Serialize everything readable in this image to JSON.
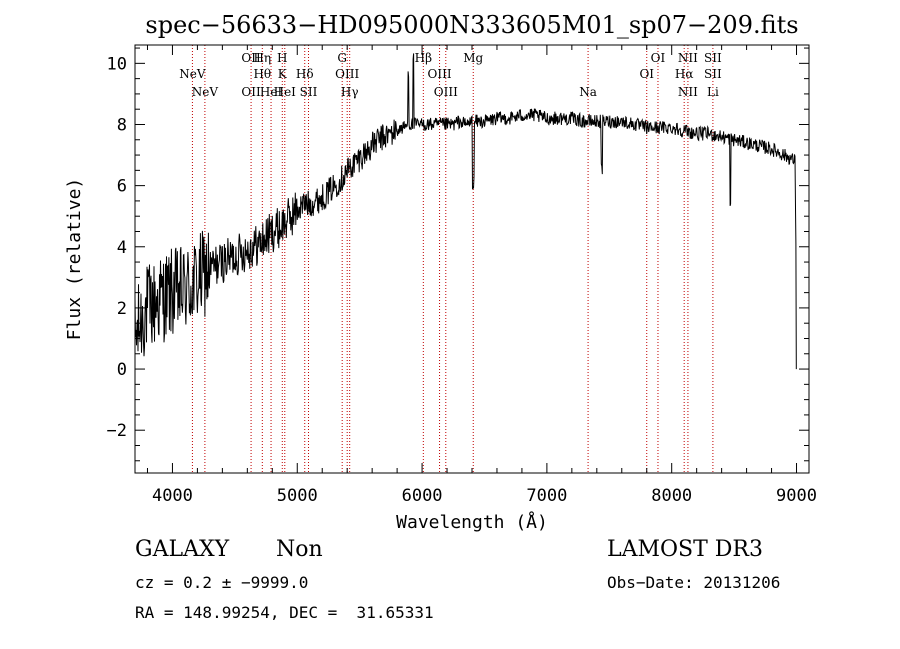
{
  "chart_data": {
    "type": "line",
    "title": "spec−56633−HD095000N333605M01_sp07−209.fits",
    "xlabel": "Wavelength (Å)",
    "ylabel": "Flux (relative)",
    "xlim": [
      3700,
      9100
    ],
    "ylim": [
      -3.4,
      10.6
    ],
    "xticks": [
      4000,
      5000,
      6000,
      7000,
      8000,
      9000
    ],
    "yticks": [
      -2,
      0,
      2,
      4,
      6,
      8,
      10
    ],
    "xticks_labels": [
      "4000",
      "5000",
      "6000",
      "7000",
      "8000",
      "9000"
    ],
    "yticks_labels": [
      "−2",
      "0",
      "2",
      "4",
      "6",
      "8",
      "10"
    ],
    "series": [
      {
        "name": "flux",
        "x": [
          3700,
          3750,
          3800,
          3850,
          3900,
          3950,
          4000,
          4050,
          4100,
          4150,
          4200,
          4250,
          4300,
          4350,
          4400,
          4450,
          4500,
          4550,
          4600,
          4650,
          4700,
          4750,
          4800,
          4850,
          4900,
          4950,
          5000,
          5050,
          5100,
          5150,
          5200,
          5250,
          5300,
          5350,
          5400,
          5450,
          5500,
          5550,
          5600,
          5650,
          5700,
          5750,
          5800,
          5850,
          5900,
          5950,
          6000,
          6050,
          6100,
          6150,
          6200,
          6250,
          6300,
          6350,
          6400,
          6450,
          6500,
          6600,
          6700,
          6800,
          6900,
          7000,
          7100,
          7200,
          7300,
          7400,
          7500,
          7600,
          7700,
          7800,
          7900,
          8000,
          8100,
          8200,
          8300,
          8400,
          8500,
          8600,
          8700,
          8800,
          8900,
          8950,
          8990,
          9000
        ],
        "y": [
          1.0,
          1.6,
          2.0,
          2.1,
          2.3,
          2.4,
          2.5,
          2.5,
          2.6,
          2.7,
          2.9,
          3.1,
          3.3,
          3.4,
          3.5,
          3.6,
          3.7,
          3.8,
          3.9,
          4.0,
          4.1,
          4.3,
          4.5,
          4.6,
          4.8,
          5.0,
          5.2,
          5.4,
          5.4,
          5.5,
          5.6,
          5.8,
          6.0,
          6.2,
          6.5,
          6.7,
          6.9,
          7.1,
          7.3,
          7.5,
          7.6,
          7.7,
          7.8,
          7.9,
          8.0,
          8.0,
          8.0,
          8.0,
          8.0,
          8.0,
          8.0,
          8.0,
          8.1,
          8.0,
          8.1,
          8.1,
          8.1,
          8.2,
          8.2,
          8.3,
          8.3,
          8.2,
          8.2,
          8.2,
          8.1,
          8.1,
          8.1,
          8.1,
          8.0,
          7.9,
          7.9,
          7.9,
          7.8,
          7.7,
          7.7,
          7.6,
          7.5,
          7.4,
          7.3,
          7.2,
          7.0,
          6.9,
          6.8,
          0.0
        ]
      }
    ],
    "lines": [
      {
        "label": "NeV",
        "wavelength": 4160,
        "row": 2
      },
      {
        "label": "NeV",
        "wavelength": 4260,
        "row": 3
      },
      {
        "label": "OII",
        "wavelength": 4630,
        "row": 1
      },
      {
        "label": "OII",
        "wavelength": 4630,
        "row": 3
      },
      {
        "label": "Hη",
        "wavelength": 4720,
        "row": 1
      },
      {
        "label": "Hθ",
        "wavelength": 4720,
        "row": 2
      },
      {
        "label": "HeI",
        "wavelength": 4790,
        "row": 3
      },
      {
        "label": "H",
        "wavelength": 4880,
        "row": 1
      },
      {
        "label": "K",
        "wavelength": 4880,
        "row": 2
      },
      {
        "label": "HeI",
        "wavelength": 4900,
        "row": 3
      },
      {
        "label": "Hδ",
        "wavelength": 5060,
        "row": 2
      },
      {
        "label": "SII",
        "wavelength": 5090,
        "row": 3
      },
      {
        "label": "G",
        "wavelength": 5360,
        "row": 1
      },
      {
        "label": "OIII",
        "wavelength": 5400,
        "row": 2
      },
      {
        "label": "Hγ",
        "wavelength": 5420,
        "row": 3
      },
      {
        "label": "Hβ",
        "wavelength": 6010,
        "row": 1
      },
      {
        "label": "OIII",
        "wavelength": 6140,
        "row": 2
      },
      {
        "label": "OIII",
        "wavelength": 6190,
        "row": 3
      },
      {
        "label": "Mg",
        "wavelength": 6410,
        "row": 1
      },
      {
        "label": "Na",
        "wavelength": 7330,
        "row": 3
      },
      {
        "label": "OI",
        "wavelength": 7890,
        "row": 1
      },
      {
        "label": "OI",
        "wavelength": 7800,
        "row": 2
      },
      {
        "label": "NII",
        "wavelength": 8130,
        "row": 1
      },
      {
        "label": "Hα",
        "wavelength": 8100,
        "row": 2
      },
      {
        "label": "NII",
        "wavelength": 8130,
        "row": 3
      },
      {
        "label": "SII",
        "wavelength": 8330,
        "row": 1
      },
      {
        "label": "SII",
        "wavelength": 8330,
        "row": 2
      },
      {
        "label": "Li",
        "wavelength": 8330,
        "row": 3
      }
    ]
  },
  "info": {
    "object_class": "GALAXY",
    "subclass": "Non",
    "survey": "LAMOST DR3",
    "redshift_text": "cz = 0.2 ± −9999.0",
    "obs_date": "Obs−Date: 20131206",
    "coords_text": "RA = 148.99254, DEC =  31.65331"
  }
}
